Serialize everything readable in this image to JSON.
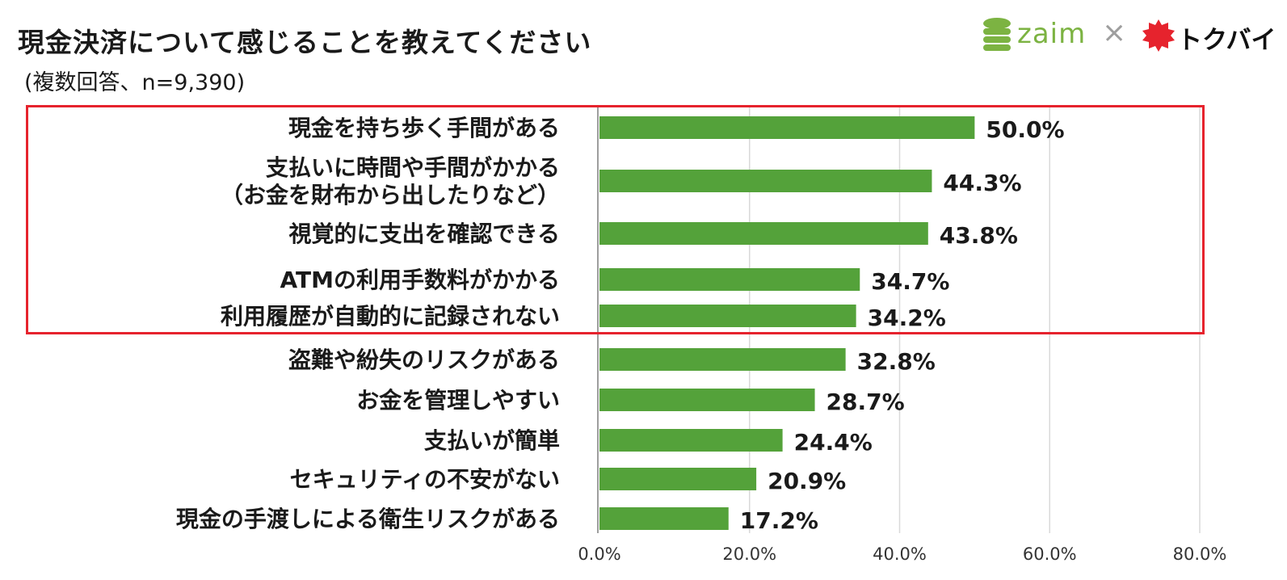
{
  "header": {
    "title": "現金決済について感じることを教えてください",
    "subtitle": "(複数回答、n=9,390)"
  },
  "brand": {
    "zaim": "zaim",
    "times": "×",
    "tokubai": "トクバイ"
  },
  "colors": {
    "bar": "#54a23a",
    "highlight": "#e6232d",
    "zaim_green": "#7cb342",
    "tokubai_red": "#e6232d"
  },
  "chart_data": {
    "type": "bar",
    "orientation": "horizontal",
    "title": "現金決済について感じることを教えてください",
    "subtitle": "(複数回答、n=9,390)",
    "categories": [
      [
        "現金を持ち歩く手間がある"
      ],
      [
        "支払いに時間や手間がかかる",
        "（お金を財布から出したりなど）"
      ],
      [
        "視覚的に支出を確認できる"
      ],
      [
        "ATMの利用手数料がかかる"
      ],
      [
        "利用履歴が自動的に記録されない"
      ],
      [
        "盗難や紛失のリスクがある"
      ],
      [
        "お金を管理しやすい"
      ],
      [
        "支払いが簡単"
      ],
      [
        "セキュリティの不安がない"
      ],
      [
        "現金の手渡しによる衛生リスクがある"
      ]
    ],
    "values": [
      50.0,
      44.3,
      43.8,
      34.7,
      34.2,
      32.8,
      28.7,
      24.4,
      20.9,
      17.2
    ],
    "value_labels": [
      "50.0%",
      "44.3%",
      "43.8%",
      "34.7%",
      "34.2%",
      "32.8%",
      "28.7%",
      "24.4%",
      "20.9%",
      "17.2%"
    ],
    "xlim": [
      0,
      80
    ],
    "xticks": [
      0,
      20,
      40,
      60,
      80
    ],
    "xtick_labels": [
      "0.0%",
      "20.0%",
      "40.0%",
      "60.0%",
      "80.0%"
    ],
    "grid": true,
    "highlighted_categories": [
      0,
      1,
      2,
      3,
      4
    ]
  }
}
